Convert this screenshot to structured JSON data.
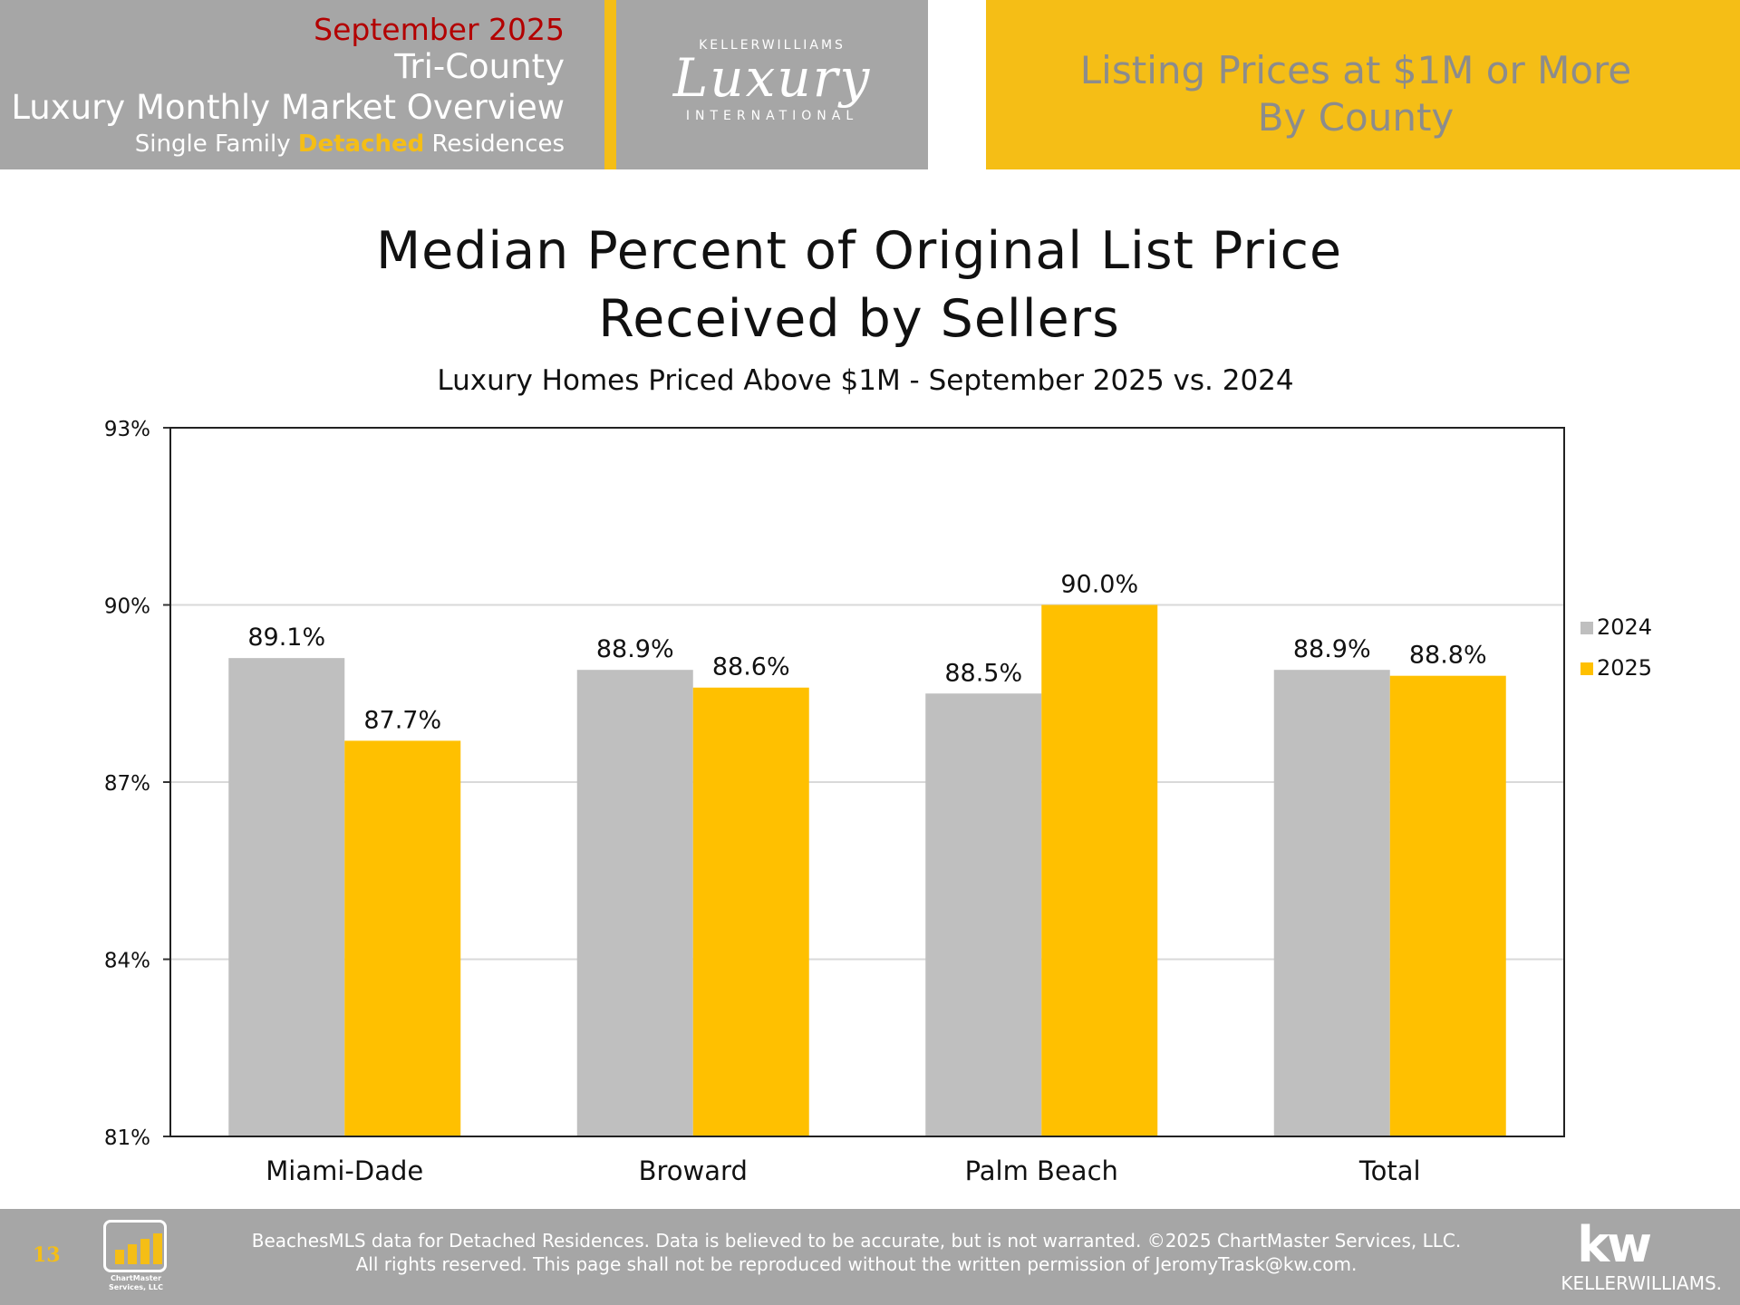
{
  "header": {
    "month": "September 2025",
    "region": "Tri-County",
    "overview": "Luxury Monthly Market Overview",
    "type_prefix": "Single Family ",
    "type_highlight": "Detached",
    "type_suffix": " Residences",
    "logo_top": "KELLERWILLIAMS",
    "logo_script": "Luxury",
    "logo_bottom": "INTERNATIONAL",
    "right_line1": "Listing Prices at $1M or More",
    "right_line2": "By County"
  },
  "colors": {
    "gray_panel": "#a6a6a6",
    "gold": "#f5be16",
    "red_month": "#b30000",
    "series_2024": "#bfbfbf",
    "series_2025": "#ffc000"
  },
  "chart_data": {
    "type": "bar",
    "title_line1": "Median Percent of Original List Price",
    "title_line2": "Received by Sellers",
    "subtitle": "Luxury Homes Priced Above $1M - September 2025 vs. 2024",
    "categories": [
      "Miami-Dade",
      "Broward",
      "Palm Beach",
      "Total"
    ],
    "series": [
      {
        "name": "2024",
        "values": [
          89.1,
          88.9,
          88.5,
          88.9
        ],
        "labels": [
          "89.1%",
          "88.9%",
          "88.5%",
          "88.9%"
        ],
        "color": "#bfbfbf"
      },
      {
        "name": "2025",
        "values": [
          87.7,
          88.6,
          90.0,
          88.8
        ],
        "labels": [
          "87.7%",
          "88.6%",
          "90.0%",
          "88.8%"
        ],
        "color": "#ffc000"
      }
    ],
    "ylim": [
      81,
      93
    ],
    "yticks": [
      81,
      84,
      87,
      90,
      93
    ],
    "ytick_labels": [
      "81%",
      "84%",
      "87%",
      "90%",
      "93%"
    ],
    "grid": true,
    "legend": "right"
  },
  "footer": {
    "page_number": "13",
    "logo_text": "ChartMaster Services, LLC",
    "disclaimer_line1": "BeachesMLS data for Detached Residences.  Data is believed to be accurate, but is not warranted.   ©2025  ChartMaster Services, LLC.",
    "disclaimer_line2": "All rights reserved. This page shall not be reproduced without the written permission of JeromyTrask@kw.com.",
    "kw_mark": "kw",
    "kw_name": "KELLERWILLIAMS."
  }
}
